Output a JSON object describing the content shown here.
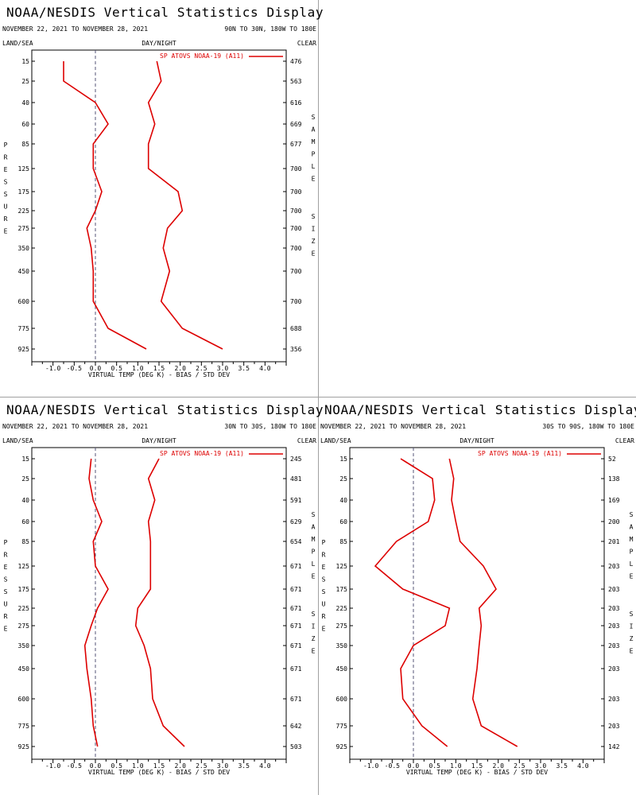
{
  "colors": {
    "series": "#dd0000",
    "zero_line": "#555577",
    "axis": "#000000"
  },
  "common": {
    "title": "NOAA/NESDIS Vertical Statistics Display",
    "land_sea": "LAND/SEA",
    "day_night": "DAY/NIGHT",
    "clear": "CLEAR",
    "pressure_label": "PRESSURE",
    "sample_label": "SAMPLE",
    "size_label": "SIZE",
    "x_label": "VIRTUAL TEMP (DEG K) - BIAS / STD DEV"
  },
  "chart_data": [
    {
      "type": "line",
      "date_range": "NOVEMBER 22, 2021 TO NOVEMBER 28, 2021",
      "region": "90N TO 30N, 180W TO 180E",
      "legend": "SP ATOVS NOAA-19 (A11)",
      "pressure_levels": [
        15,
        25,
        40,
        60,
        85,
        125,
        175,
        225,
        275,
        350,
        450,
        600,
        775,
        925
      ],
      "sample_size": [
        476,
        563,
        616,
        669,
        677,
        700,
        700,
        700,
        700,
        700,
        700,
        700,
        688,
        356
      ],
      "x_ticks": [
        -1.0,
        -0.5,
        0.0,
        0.5,
        1.0,
        1.5,
        2.0,
        2.5,
        3.0,
        3.5,
        4.0
      ],
      "xlim": [
        -1.5,
        4.5
      ],
      "series": [
        {
          "name": "BIAS",
          "values": [
            -0.75,
            -0.75,
            0.0,
            0.3,
            -0.05,
            -0.05,
            0.15,
            0.0,
            -0.2,
            -0.1,
            -0.05,
            -0.05,
            0.3,
            1.2
          ]
        },
        {
          "name": "STD DEV",
          "values": [
            1.45,
            1.55,
            1.25,
            1.4,
            1.25,
            1.25,
            1.95,
            2.05,
            1.7,
            1.6,
            1.75,
            1.55,
            2.05,
            3.0
          ]
        }
      ]
    },
    {
      "type": "line",
      "date_range": "NOVEMBER 22, 2021 TO NOVEMBER 28, 2021",
      "region": "30N TO 30S, 180W TO 180E",
      "legend": "SP ATOVS NOAA-19 (A11)",
      "pressure_levels": [
        15,
        25,
        40,
        60,
        85,
        125,
        175,
        225,
        275,
        350,
        450,
        600,
        775,
        925
      ],
      "sample_size": [
        245,
        481,
        591,
        629,
        654,
        671,
        671,
        671,
        671,
        671,
        671,
        671,
        642,
        503
      ],
      "x_ticks": [
        -1.0,
        -0.5,
        0.0,
        0.5,
        1.0,
        1.5,
        2.0,
        2.5,
        3.0,
        3.5,
        4.0
      ],
      "xlim": [
        -1.5,
        4.5
      ],
      "series": [
        {
          "name": "BIAS",
          "values": [
            -0.1,
            -0.15,
            -0.05,
            0.15,
            -0.05,
            0.0,
            0.3,
            0.05,
            -0.1,
            -0.25,
            -0.2,
            -0.1,
            -0.05,
            0.05
          ]
        },
        {
          "name": "STD DEV",
          "values": [
            1.5,
            1.25,
            1.4,
            1.25,
            1.3,
            1.3,
            1.3,
            1.0,
            0.95,
            1.15,
            1.3,
            1.35,
            1.6,
            2.1
          ]
        }
      ]
    },
    {
      "type": "line",
      "date_range": "NOVEMBER 22, 2021 TO NOVEMBER 28, 2021",
      "region": "30S TO 90S, 180W TO 180E",
      "legend": "SP ATOVS NOAA-19 (A11)",
      "pressure_levels": [
        15,
        25,
        40,
        60,
        85,
        125,
        175,
        225,
        275,
        350,
        450,
        600,
        775,
        925
      ],
      "sample_size": [
        52,
        138,
        169,
        200,
        201,
        203,
        203,
        203,
        203,
        203,
        203,
        203,
        203,
        142
      ],
      "x_ticks": [
        -1.0,
        -0.5,
        0.0,
        0.5,
        1.0,
        1.5,
        2.0,
        2.5,
        3.0,
        3.5,
        4.0
      ],
      "xlim": [
        -1.5,
        4.5
      ],
      "series": [
        {
          "name": "BIAS",
          "values": [
            -0.3,
            0.45,
            0.5,
            0.35,
            -0.4,
            -0.9,
            -0.25,
            0.85,
            0.75,
            0.0,
            -0.3,
            -0.25,
            0.2,
            0.8
          ]
        },
        {
          "name": "STD DEV",
          "values": [
            0.85,
            0.95,
            0.9,
            1.0,
            1.1,
            1.65,
            1.95,
            1.55,
            1.6,
            1.55,
            1.5,
            1.4,
            1.6,
            2.45
          ]
        }
      ]
    }
  ]
}
